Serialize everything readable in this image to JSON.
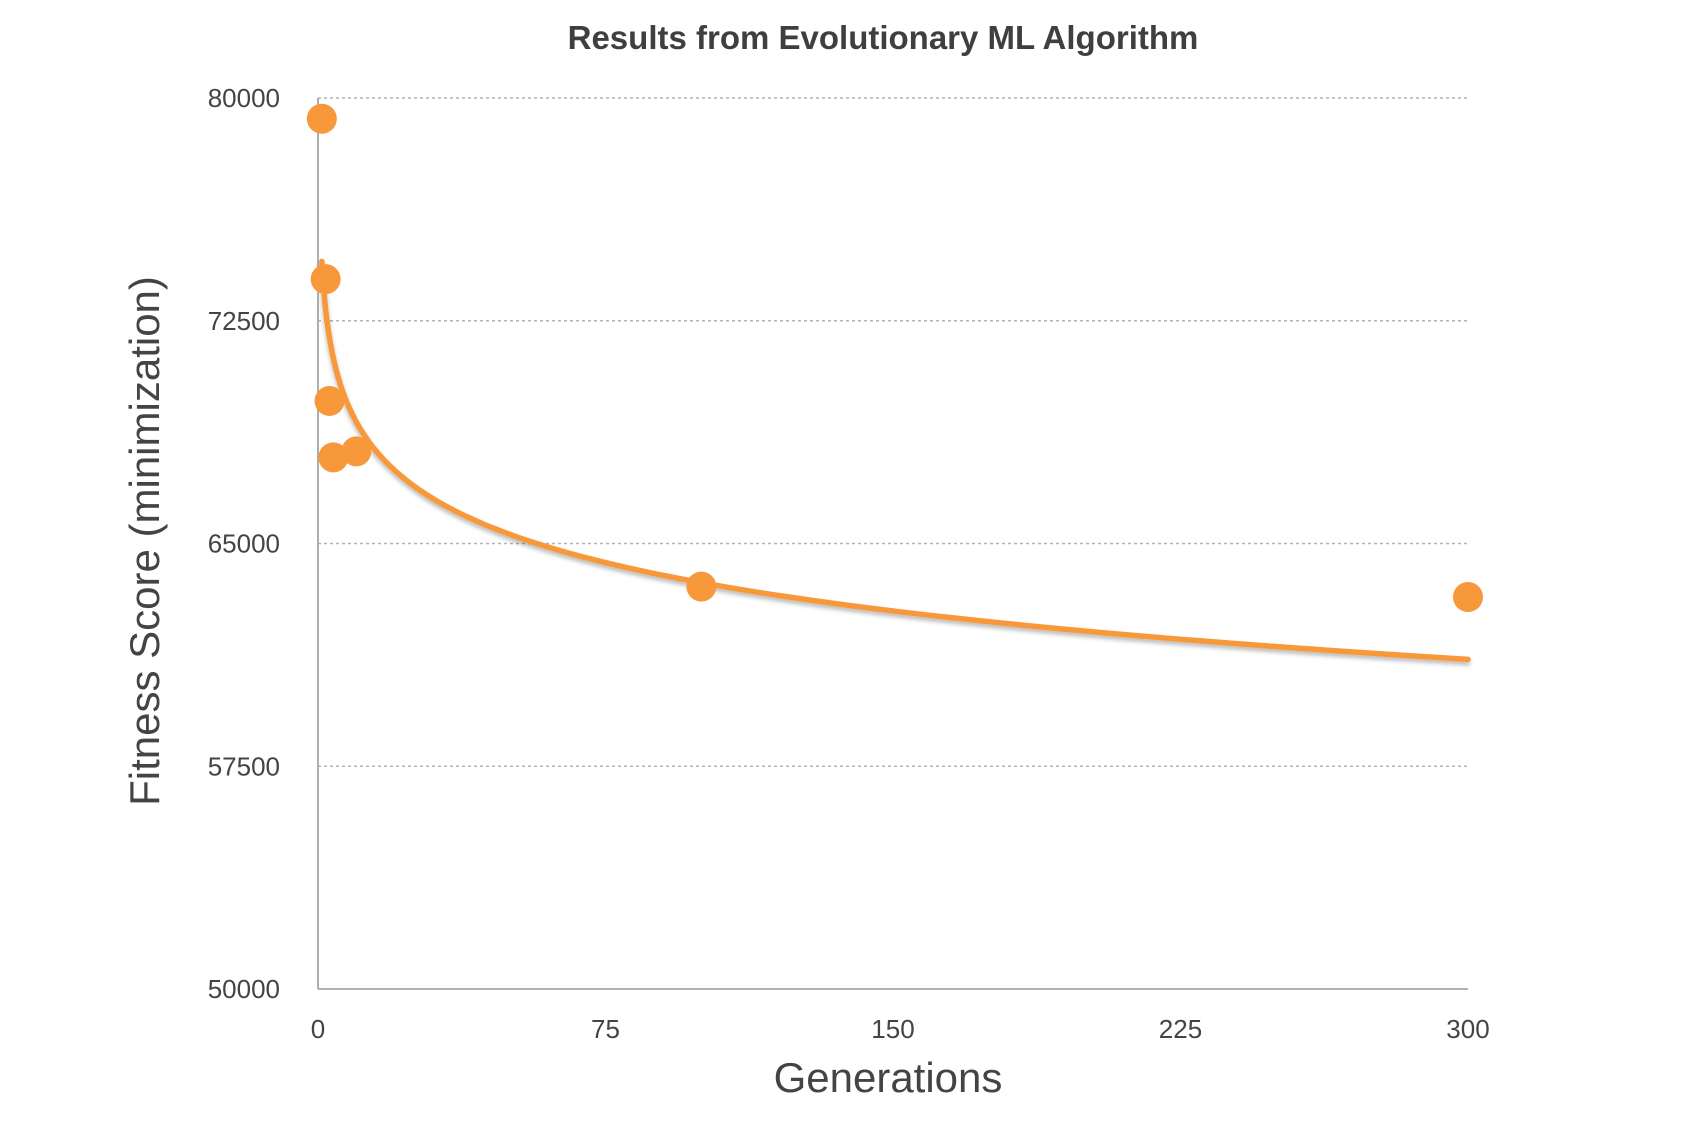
{
  "chart_data": {
    "type": "scatter",
    "title": "Results from Evolutionary ML Algorithm",
    "xlabel": "Generations",
    "ylabel": "Fitness Score (minimization)",
    "xlim": [
      0,
      300
    ],
    "ylim": [
      50000,
      80000
    ],
    "x_ticks": [
      "0",
      "75",
      "150",
      "225",
      "300"
    ],
    "x_tick_values": [
      0,
      75,
      150,
      225,
      300
    ],
    "y_ticks": [
      "80000",
      "72500",
      "65000",
      "57500",
      "50000"
    ],
    "y_tick_values": [
      80000,
      72500,
      65000,
      57500,
      50000
    ],
    "grid": "horizontal dotted",
    "legend": "none",
    "series": [
      {
        "points": [
          {
            "x": 1,
            "y": 79300
          },
          {
            "x": 2,
            "y": 73900
          },
          {
            "x": 3,
            "y": 69800
          },
          {
            "x": 4,
            "y": 67900
          },
          {
            "x": 10,
            "y": 68100
          },
          {
            "x": 100,
            "y": 63550
          },
          {
            "x": 300,
            "y": 63200
          }
        ],
        "color": "#f7993a"
      }
    ],
    "trendline": {
      "type": "logarithmic",
      "x_range": [
        1,
        300
      ],
      "y_at_start": 74500,
      "y_at_end": 61100,
      "color": "#f7993a"
    }
  }
}
